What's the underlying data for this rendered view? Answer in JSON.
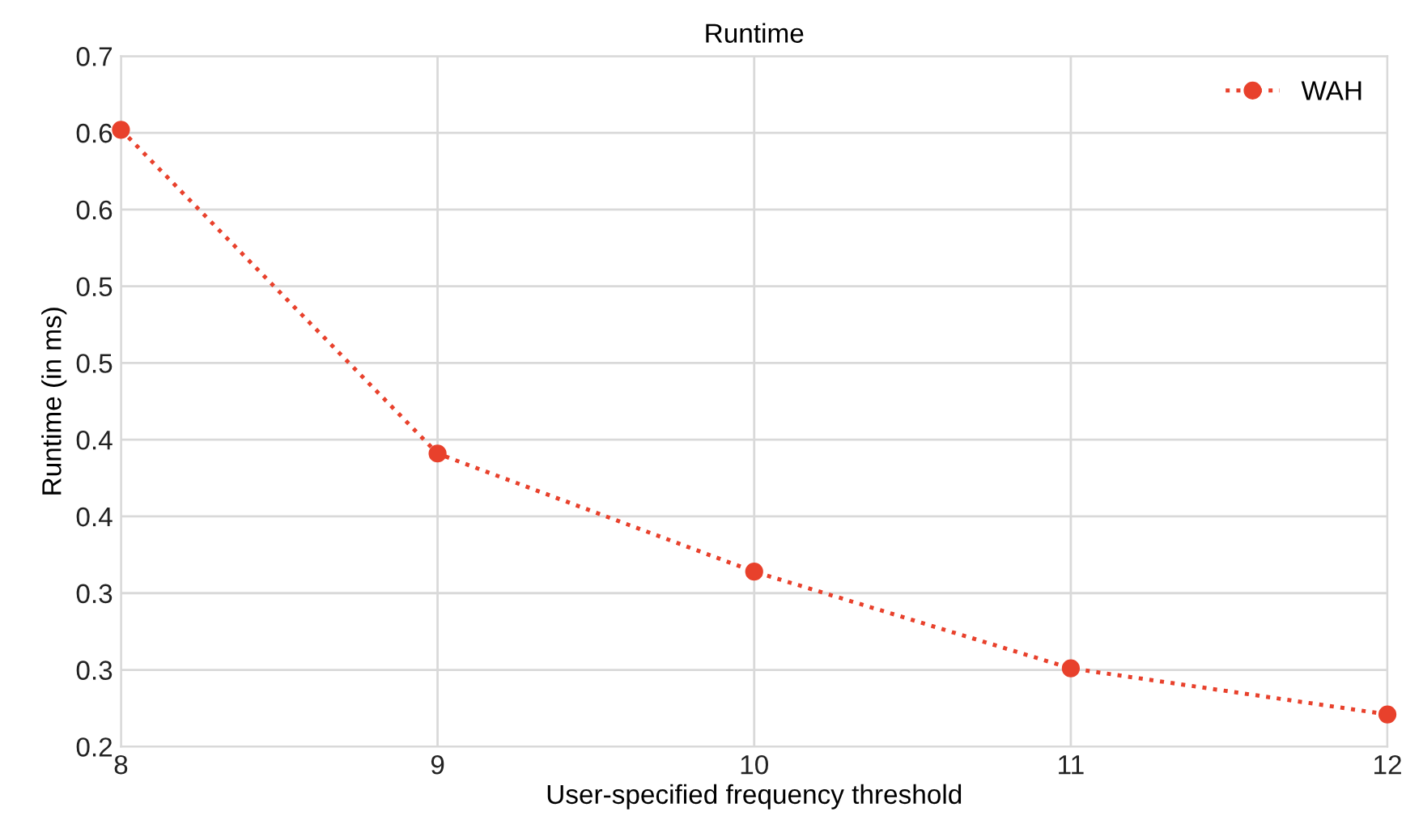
{
  "chart_data": {
    "type": "line",
    "title": "Runtime",
    "xlabel": "User-specified frequency threshold",
    "ylabel": "Runtime (in ms)",
    "x": [
      8,
      9,
      10,
      11,
      12
    ],
    "series": [
      {
        "name": "WAH",
        "color": "#e8412c",
        "values": [
          0.602,
          0.391,
          0.314,
          0.251,
          0.221
        ]
      }
    ],
    "xlim": [
      8,
      12
    ],
    "xticks": [
      8,
      9,
      10,
      11,
      12
    ],
    "ylim": [
      0.2,
      0.65
    ],
    "yticks": [
      {
        "value": 0.2,
        "label": "0.2"
      },
      {
        "value": 0.25,
        "label": "0.3"
      },
      {
        "value": 0.3,
        "label": "0.3"
      },
      {
        "value": 0.35,
        "label": "0.4"
      },
      {
        "value": 0.4,
        "label": "0.4"
      },
      {
        "value": 0.45,
        "label": "0.5"
      },
      {
        "value": 0.5,
        "label": "0.5"
      },
      {
        "value": 0.55,
        "label": "0.6"
      },
      {
        "value": 0.6,
        "label": "0.6"
      },
      {
        "value": 0.65,
        "label": "0.7"
      }
    ],
    "grid": true,
    "legend": "top right",
    "marker": "circle",
    "line_style": "dotted"
  }
}
